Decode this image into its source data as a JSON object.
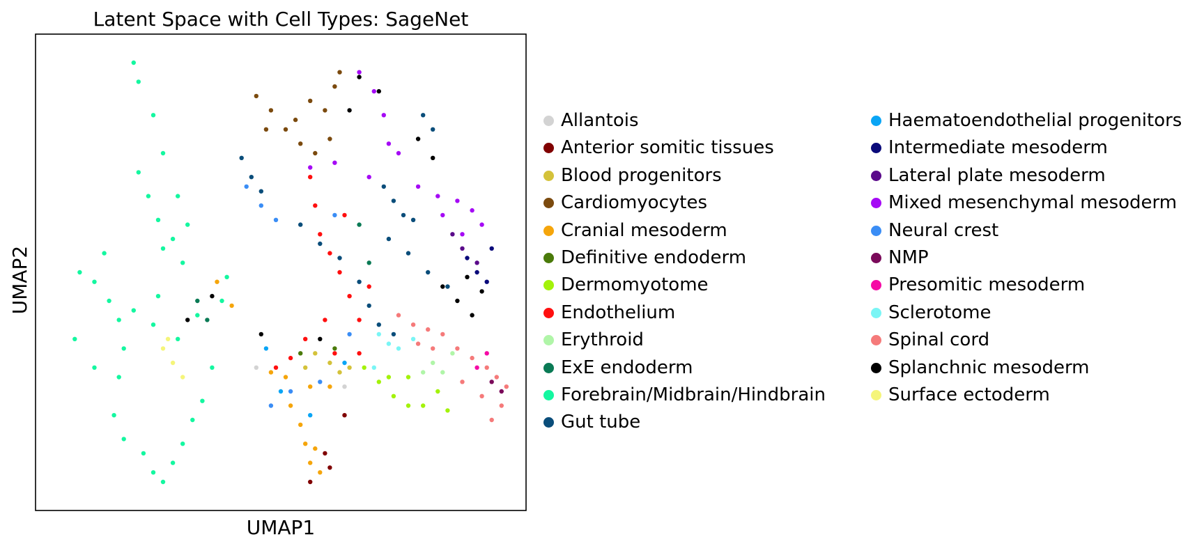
{
  "chart_data": {
    "type": "scatter",
    "title": "Latent Space with Cell Types: SageNet",
    "xlabel": "UMAP1",
    "ylabel": "UMAP2",
    "xticks": [],
    "yticks": [],
    "xlim": [
      0,
      100
    ],
    "ylim": [
      0,
      100
    ],
    "grid": false,
    "legend_position": "right",
    "legend_columns": 2,
    "categories": [
      {
        "name": "Allantois",
        "color": "#d3d3d3"
      },
      {
        "name": "Anterior somitic tissues",
        "color": "#800000"
      },
      {
        "name": "Blood progenitors",
        "color": "#d4c23a"
      },
      {
        "name": "Cardiomyocytes",
        "color": "#7b4a0e"
      },
      {
        "name": "Cranial mesoderm",
        "color": "#f5a50b"
      },
      {
        "name": "Definitive endoderm",
        "color": "#4a7a0a"
      },
      {
        "name": "Dermomyotome",
        "color": "#a3f20a"
      },
      {
        "name": "Endothelium",
        "color": "#ff0f0f"
      },
      {
        "name": "Erythroid",
        "color": "#b0f5a8"
      },
      {
        "name": "ExE endoderm",
        "color": "#0a7a55"
      },
      {
        "name": "Forebrain/Midbrain/Hindbrain",
        "color": "#14f7a0"
      },
      {
        "name": "Gut tube",
        "color": "#0a4d7a"
      },
      {
        "name": "Haematoendothelial progenitors",
        "color": "#0aa5f5"
      },
      {
        "name": "Intermediate mesoderm",
        "color": "#0a0a7a"
      },
      {
        "name": "Lateral plate mesoderm",
        "color": "#5a0a8a"
      },
      {
        "name": "Mixed mesenchymal mesoderm",
        "color": "#a50af5"
      },
      {
        "name": "Neural crest",
        "color": "#3a8df5"
      },
      {
        "name": "NMP",
        "color": "#7a0a5a"
      },
      {
        "name": "Presomitic mesoderm",
        "color": "#f50aa5"
      },
      {
        "name": "Sclerotome",
        "color": "#7af5f5"
      },
      {
        "name": "Spinal cord",
        "color": "#f57a7a"
      },
      {
        "name": "Splanchnic mesoderm",
        "color": "#000000"
      },
      {
        "name": "Surface ectoderm",
        "color": "#f5f57a"
      }
    ],
    "clusters": [
      {
        "category": "Forebrain/Midbrain/Hindbrain",
        "points": [
          [
            20,
            94
          ],
          [
            21,
            90
          ],
          [
            24,
            83
          ],
          [
            26,
            75
          ],
          [
            29,
            66
          ],
          [
            31,
            60
          ],
          [
            21,
            71
          ],
          [
            23,
            66
          ],
          [
            25,
            61
          ],
          [
            28,
            57
          ],
          [
            30,
            52
          ],
          [
            9,
            50
          ],
          [
            12,
            48
          ],
          [
            15,
            44
          ],
          [
            17,
            40
          ],
          [
            20,
            42
          ],
          [
            14,
            54
          ],
          [
            26,
            55
          ],
          [
            25,
            45
          ],
          [
            24,
            39
          ],
          [
            18,
            34
          ],
          [
            17,
            28
          ],
          [
            16,
            20
          ],
          [
            18,
            15
          ],
          [
            22,
            12
          ],
          [
            24,
            8
          ],
          [
            26,
            6
          ],
          [
            28,
            10
          ],
          [
            30,
            14
          ],
          [
            32,
            19
          ],
          [
            34,
            23
          ],
          [
            36,
            30
          ],
          [
            29,
            36
          ],
          [
            33,
            41
          ],
          [
            38,
            44
          ],
          [
            39,
            49
          ],
          [
            12,
            30
          ],
          [
            8,
            36
          ]
        ]
      },
      {
        "category": "Cardiomyocytes",
        "points": [
          [
            45,
            87
          ],
          [
            48,
            84
          ],
          [
            51,
            80
          ],
          [
            54,
            77
          ],
          [
            57,
            75
          ],
          [
            60,
            78
          ],
          [
            59,
            84
          ],
          [
            61,
            89
          ],
          [
            62,
            92
          ],
          [
            56,
            86
          ],
          [
            53,
            82
          ],
          [
            47,
            80
          ]
        ]
      },
      {
        "category": "Mixed mesenchymal mesoderm",
        "points": [
          [
            66,
            92
          ],
          [
            69,
            88
          ],
          [
            71,
            83
          ],
          [
            74,
            75
          ],
          [
            78,
            68
          ],
          [
            82,
            66
          ],
          [
            86,
            65
          ],
          [
            89,
            63
          ],
          [
            91,
            60
          ],
          [
            83,
            62
          ],
          [
            87,
            58
          ],
          [
            56,
            72
          ],
          [
            61,
            73
          ],
          [
            68,
            70
          ],
          [
            72,
            77
          ]
        ]
      },
      {
        "category": "Gut tube",
        "points": [
          [
            42,
            74
          ],
          [
            44,
            70
          ],
          [
            46,
            67
          ],
          [
            54,
            60
          ],
          [
            58,
            56
          ],
          [
            62,
            53
          ],
          [
            66,
            48
          ],
          [
            68,
            43
          ],
          [
            70,
            39
          ],
          [
            73,
            37
          ],
          [
            72,
            57
          ],
          [
            76,
            54
          ],
          [
            80,
            50
          ],
          [
            84,
            47
          ],
          [
            71,
            68
          ],
          [
            73,
            65
          ],
          [
            75,
            62
          ],
          [
            77,
            61
          ],
          [
            79,
            83
          ],
          [
            81,
            80
          ]
        ]
      },
      {
        "category": "Splanchnic mesoderm",
        "points": [
          [
            66,
            91
          ],
          [
            70,
            88
          ],
          [
            64,
            84
          ],
          [
            78,
            78
          ],
          [
            81,
            74
          ],
          [
            83,
            47
          ],
          [
            86,
            44
          ],
          [
            89,
            41
          ],
          [
            88,
            49
          ],
          [
            91,
            46
          ],
          [
            36,
            45
          ],
          [
            31,
            40
          ],
          [
            46,
            37
          ],
          [
            58,
            36
          ]
        ]
      },
      {
        "category": "Intermediate mesoderm",
        "points": [
          [
            88,
            53
          ],
          [
            90,
            50
          ],
          [
            92,
            48
          ],
          [
            93,
            55
          ]
        ]
      },
      {
        "category": "Neural crest",
        "points": [
          [
            43,
            68
          ],
          [
            46,
            64
          ],
          [
            49,
            61
          ],
          [
            64,
            37
          ],
          [
            58,
            27
          ],
          [
            52,
            25
          ],
          [
            48,
            22
          ],
          [
            61,
            62
          ]
        ]
      },
      {
        "category": "Endothelium",
        "points": [
          [
            56,
            70
          ],
          [
            57,
            64
          ],
          [
            58,
            58
          ],
          [
            60,
            54
          ],
          [
            62,
            50
          ],
          [
            64,
            45
          ],
          [
            66,
            40
          ],
          [
            59,
            40
          ],
          [
            55,
            36
          ],
          [
            61,
            33
          ],
          [
            66,
            33
          ],
          [
            52,
            32
          ],
          [
            49,
            30
          ],
          [
            63,
            62
          ],
          [
            68,
            47
          ]
        ]
      },
      {
        "category": "Spinal cord",
        "points": [
          [
            74,
            41
          ],
          [
            77,
            39
          ],
          [
            80,
            38
          ],
          [
            83,
            37
          ],
          [
            86,
            34
          ],
          [
            89,
            32
          ],
          [
            92,
            30
          ],
          [
            94,
            28
          ],
          [
            96,
            26
          ],
          [
            95,
            22
          ],
          [
            93,
            19
          ],
          [
            91,
            24
          ],
          [
            87,
            27
          ],
          [
            81,
            34
          ],
          [
            78,
            35
          ]
        ]
      },
      {
        "category": "Cranial mesoderm",
        "points": [
          [
            52,
            22
          ],
          [
            54,
            18
          ],
          [
            55,
            14
          ],
          [
            56,
            10
          ],
          [
            58,
            8
          ],
          [
            57,
            13
          ],
          [
            56,
            26
          ],
          [
            51,
            28
          ],
          [
            48,
            29
          ],
          [
            60,
            26
          ],
          [
            40,
            43
          ],
          [
            37,
            48
          ]
        ]
      },
      {
        "category": "Dermomyotome",
        "points": [
          [
            67,
            30
          ],
          [
            70,
            27
          ],
          [
            73,
            24
          ],
          [
            76,
            22
          ],
          [
            79,
            22
          ],
          [
            82,
            25
          ],
          [
            84,
            21
          ],
          [
            72,
            28
          ],
          [
            76,
            28
          ]
        ]
      },
      {
        "category": "Sclerotome",
        "points": [
          [
            70,
            37
          ],
          [
            72,
            35
          ],
          [
            74,
            34
          ],
          [
            77,
            36
          ],
          [
            69,
            30
          ]
        ]
      },
      {
        "category": "Blood progenitors",
        "points": [
          [
            57,
            33
          ],
          [
            60,
            31
          ],
          [
            62,
            29
          ],
          [
            64,
            30
          ],
          [
            55,
            30
          ]
        ]
      },
      {
        "category": "Erythroid",
        "points": [
          [
            81,
            31
          ],
          [
            83,
            29
          ],
          [
            85,
            33
          ],
          [
            79,
            29
          ]
        ]
      },
      {
        "category": "Surface ectoderm",
        "points": [
          [
            26,
            34
          ],
          [
            28,
            31
          ],
          [
            30,
            28
          ],
          [
            27,
            36
          ]
        ]
      },
      {
        "category": "Anterior somitic tissues",
        "points": [
          [
            59,
            12
          ],
          [
            60,
            9
          ],
          [
            56,
            6
          ],
          [
            63,
            20
          ]
        ]
      },
      {
        "category": "Haematoendothelial progenitors",
        "points": [
          [
            47,
            34
          ],
          [
            50,
            25
          ],
          [
            56,
            20
          ],
          [
            63,
            31
          ]
        ]
      },
      {
        "category": "ExE endoderm",
        "points": [
          [
            35,
            40
          ],
          [
            33,
            44
          ],
          [
            68,
            52
          ],
          [
            66,
            60
          ]
        ]
      },
      {
        "category": "Lateral plate mesoderm",
        "points": [
          [
            90,
            52
          ],
          [
            87,
            55
          ],
          [
            85,
            58
          ]
        ]
      },
      {
        "category": "Definitive endoderm",
        "points": [
          [
            61,
            34
          ],
          [
            54,
            33
          ]
        ]
      },
      {
        "category": "NMP",
        "points": [
          [
            95,
            25
          ],
          [
            93,
            27
          ]
        ]
      },
      {
        "category": "Presomitic mesoderm",
        "points": [
          [
            90,
            30
          ],
          [
            92,
            33
          ]
        ]
      },
      {
        "category": "Allantois",
        "points": [
          [
            45,
            30
          ],
          [
            63,
            26
          ]
        ]
      }
    ]
  }
}
